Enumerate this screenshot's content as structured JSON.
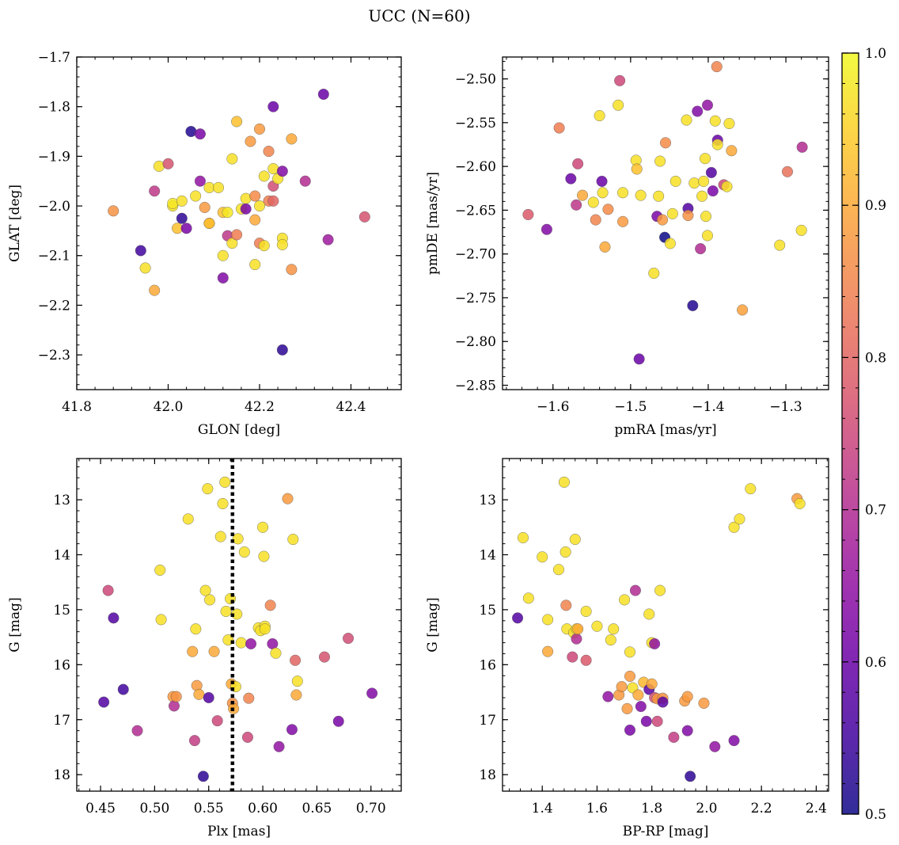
{
  "figure": {
    "title": "UCC (N=60)",
    "colorbar": {
      "cmap": "plasma",
      "min": 0.5,
      "max": 1.0,
      "ticks": [
        0.5,
        0.6,
        0.7,
        0.8,
        0.9,
        1.0
      ],
      "tick_labels": [
        "0.5",
        "0.6",
        "0.7",
        "0.8",
        "0.9",
        "1.0"
      ]
    }
  },
  "chart_data": [
    {
      "type": "scatter",
      "xlabel": "GLON [deg]",
      "ylabel": "GLAT [deg]",
      "xlim": [
        41.8,
        42.51
      ],
      "ylim": [
        -2.37,
        -1.7
      ],
      "y_inverted": false,
      "xticks": [
        41.8,
        42.0,
        42.2,
        42.4
      ],
      "xtick_labels": [
        "41.8",
        "42.0",
        "42.2",
        "42.4"
      ],
      "yticks": [
        -1.7,
        -1.8,
        -1.9,
        -2.0,
        -2.1,
        -2.2,
        -2.3
      ],
      "ytick_labels": [
        "−1.7",
        "−1.8",
        "−1.9",
        "−2.0",
        "−2.1",
        "−2.2",
        "−2.3"
      ],
      "x": [
        41.88,
        41.94,
        41.95,
        41.97,
        41.97,
        41.98,
        42.0,
        42.01,
        42.01,
        42.02,
        42.03,
        42.03,
        42.04,
        42.05,
        42.06,
        42.07,
        42.07,
        42.08,
        42.09,
        42.09,
        42.09,
        42.11,
        42.12,
        42.12,
        42.12,
        42.13,
        42.13,
        42.14,
        42.14,
        42.15,
        42.15,
        42.16,
        42.17,
        42.18,
        42.19,
        42.19,
        42.19,
        42.2,
        42.2,
        42.21,
        42.21,
        42.22,
        42.22,
        42.23,
        42.23,
        42.23,
        42.23,
        42.24,
        42.25,
        42.25,
        42.25,
        42.27,
        42.27,
        42.3,
        42.34,
        42.35,
        42.43,
        42.17,
        42.25,
        42.2
      ],
      "y": [
        -2.01,
        -2.09,
        -2.125,
        -1.97,
        -2.17,
        -1.92,
        -1.915,
        -2.0,
        -1.995,
        -2.045,
        -1.99,
        -2.025,
        -2.045,
        -1.85,
        -1.98,
        -1.855,
        -1.95,
        -2.003,
        -1.963,
        -2.035,
        -2.035,
        -1.963,
        -2.1,
        -2.145,
        -2.013,
        -2.06,
        -2.013,
        -2.075,
        -1.905,
        -1.83,
        -2.058,
        -2.006,
        -1.985,
        -1.87,
        -1.98,
        -2.028,
        -2.118,
        -1.845,
        -2.075,
        -1.94,
        -2.08,
        -1.99,
        -1.89,
        -1.8,
        -1.925,
        -1.99,
        -1.96,
        -1.945,
        -2.29,
        -2.065,
        -2.078,
        -1.865,
        -2.128,
        -1.95,
        -1.775,
        -2.068,
        -2.022,
        -2.006,
        -1.93,
        -2.0
      ],
      "c": [
        0.87,
        0.55,
        0.97,
        0.72,
        0.9,
        0.97,
        0.77,
        0.97,
        0.98,
        0.93,
        0.97,
        0.53,
        0.62,
        0.52,
        0.97,
        0.62,
        0.65,
        0.88,
        0.97,
        0.96,
        0.92,
        0.97,
        0.97,
        0.63,
        0.93,
        0.72,
        0.98,
        0.97,
        0.97,
        0.93,
        0.84,
        0.97,
        0.97,
        0.88,
        0.86,
        0.9,
        0.97,
        0.88,
        0.84,
        0.97,
        0.97,
        0.84,
        0.85,
        0.6,
        0.97,
        0.8,
        0.76,
        0.97,
        0.53,
        0.97,
        0.97,
        0.9,
        0.87,
        0.7,
        0.6,
        0.67,
        0.77,
        0.62,
        0.63,
        0.97
      ]
    },
    {
      "type": "scatter",
      "xlabel": "pmRA [mas/yr]",
      "ylabel": "pmDE [mas/yr]",
      "xlim": [
        -1.665,
        -1.245
      ],
      "ylim": [
        -2.855,
        -2.475
      ],
      "y_inverted": false,
      "xticks": [
        -1.6,
        -1.5,
        -1.4,
        -1.3
      ],
      "xtick_labels": [
        "−1.6",
        "−1.5",
        "−1.4",
        "−1.3"
      ],
      "yticks": [
        -2.5,
        -2.55,
        -2.6,
        -2.65,
        -2.7,
        -2.75,
        -2.8,
        -2.85
      ],
      "ytick_labels": [
        "−2.50",
        "−2.55",
        "−2.60",
        "−2.65",
        "−2.70",
        "−2.75",
        "−2.80",
        "−2.85"
      ],
      "x": [
        -1.632,
        -1.608,
        -1.592,
        -1.577,
        -1.57,
        -1.568,
        -1.562,
        -1.548,
        -1.545,
        -1.54,
        -1.537,
        -1.533,
        -1.529,
        -1.516,
        -1.514,
        -1.51,
        -1.51,
        -1.493,
        -1.492,
        -1.487,
        -1.489,
        -1.47,
        -1.466,
        -1.464,
        -1.462,
        -1.459,
        -1.456,
        -1.455,
        -1.449,
        -1.446,
        -1.442,
        -1.428,
        -1.426,
        -1.426,
        -1.42,
        -1.418,
        -1.414,
        -1.41,
        -1.408,
        -1.406,
        -1.404,
        -1.403,
        -1.401,
        -1.401,
        -1.396,
        -1.394,
        -1.391,
        -1.388,
        -1.389,
        -1.38,
        -1.376,
        -1.373,
        -1.37,
        -1.356,
        -1.308,
        -1.298,
        -1.28,
        -1.279,
        -1.536,
        -1.388
      ],
      "y": [
        -2.655,
        -2.672,
        -2.556,
        -2.614,
        -2.644,
        -2.597,
        -2.633,
        -2.641,
        -2.661,
        -2.542,
        -2.617,
        -2.692,
        -2.649,
        -2.53,
        -2.502,
        -2.63,
        -2.663,
        -2.593,
        -2.603,
        -2.633,
        -2.82,
        -2.722,
        -2.657,
        -2.634,
        -2.594,
        -2.661,
        -2.681,
        -2.573,
        -2.688,
        -2.654,
        -2.617,
        -2.547,
        -2.648,
        -2.656,
        -2.759,
        -2.619,
        -2.537,
        -2.694,
        -2.634,
        -2.617,
        -2.591,
        -2.657,
        -2.53,
        -2.679,
        -2.607,
        -2.628,
        -2.548,
        -2.57,
        -2.486,
        -2.621,
        -2.623,
        -2.551,
        -2.582,
        -2.764,
        -2.69,
        -2.606,
        -2.673,
        -2.578,
        -2.63,
        -2.575
      ],
      "c": [
        0.78,
        0.63,
        0.84,
        0.6,
        0.72,
        0.75,
        0.9,
        0.97,
        0.85,
        0.97,
        0.6,
        0.9,
        0.86,
        0.97,
        0.75,
        0.97,
        0.88,
        0.97,
        0.93,
        0.97,
        0.6,
        0.97,
        0.62,
        0.97,
        0.97,
        0.88,
        0.5,
        0.86,
        0.97,
        0.97,
        0.97,
        0.97,
        0.57,
        0.87,
        0.52,
        0.97,
        0.63,
        0.7,
        0.97,
        0.97,
        0.97,
        0.97,
        0.65,
        0.97,
        0.57,
        0.62,
        0.97,
        0.6,
        0.85,
        0.75,
        0.97,
        0.97,
        0.9,
        0.89,
        0.97,
        0.82,
        0.97,
        0.7,
        0.97,
        0.97
      ]
    },
    {
      "type": "scatter",
      "xlabel": "Plx [mas]",
      "ylabel": "G [mag]",
      "xlim": [
        0.428,
        0.728
      ],
      "ylim": [
        12.25,
        18.3
      ],
      "y_inverted": true,
      "vline": 0.572,
      "xticks": [
        0.45,
        0.5,
        0.55,
        0.6,
        0.65,
        0.7
      ],
      "xtick_labels": [
        "0.45",
        "0.50",
        "0.55",
        "0.60",
        "0.65",
        "0.70"
      ],
      "yticks": [
        13,
        14,
        15,
        16,
        17,
        18
      ],
      "ytick_labels": [
        "13",
        "14",
        "15",
        "16",
        "17",
        "18"
      ],
      "x": [
        0.453,
        0.457,
        0.462,
        0.471,
        0.484,
        0.505,
        0.506,
        0.517,
        0.518,
        0.52,
        0.531,
        0.535,
        0.537,
        0.538,
        0.539,
        0.541,
        0.545,
        0.547,
        0.549,
        0.55,
        0.551,
        0.555,
        0.558,
        0.561,
        0.563,
        0.565,
        0.566,
        0.568,
        0.57,
        0.571,
        0.572,
        0.573,
        0.575,
        0.576,
        0.577,
        0.58,
        0.583,
        0.586,
        0.587,
        0.589,
        0.596,
        0.598,
        0.6,
        0.601,
        0.602,
        0.602,
        0.607,
        0.609,
        0.612,
        0.615,
        0.623,
        0.627,
        0.628,
        0.63,
        0.631,
        0.632,
        0.657,
        0.67,
        0.679,
        0.701
      ],
      "y": [
        16.68,
        14.65,
        15.15,
        16.45,
        17.2,
        14.28,
        15.18,
        16.58,
        16.75,
        16.58,
        13.35,
        15.76,
        17.38,
        15.35,
        16.38,
        16.54,
        18.03,
        14.65,
        12.8,
        16.6,
        14.82,
        15.76,
        17.02,
        13.67,
        13.07,
        12.68,
        15.03,
        15.55,
        14.8,
        16.35,
        16.7,
        16.8,
        16.4,
        15.08,
        13.71,
        15.6,
        13.95,
        17.32,
        16.61,
        15.62,
        15.33,
        15.38,
        13.5,
        14.03,
        15.3,
        15.35,
        14.92,
        15.62,
        15.79,
        17.49,
        12.98,
        17.18,
        13.72,
        15.92,
        16.55,
        16.3,
        15.86,
        17.03,
        15.52,
        16.52
      ],
      "c": [
        0.57,
        0.75,
        0.57,
        0.55,
        0.7,
        0.97,
        0.97,
        0.88,
        0.7,
        0.87,
        0.97,
        0.9,
        0.73,
        0.97,
        0.88,
        0.9,
        0.53,
        0.97,
        0.97,
        0.57,
        0.97,
        0.9,
        0.75,
        0.97,
        0.97,
        0.97,
        0.97,
        0.97,
        0.97,
        0.9,
        0.87,
        0.9,
        0.97,
        0.97,
        0.97,
        0.97,
        0.97,
        0.75,
        0.85,
        0.65,
        0.97,
        0.97,
        0.97,
        0.97,
        0.97,
        0.97,
        0.85,
        0.65,
        0.97,
        0.65,
        0.88,
        0.63,
        0.97,
        0.8,
        0.9,
        0.97,
        0.77,
        0.62,
        0.76,
        0.63
      ]
    },
    {
      "type": "scatter",
      "xlabel": "BP-RP [mag]",
      "ylabel": "G [mag]",
      "xlim": [
        1.255,
        2.445
      ],
      "ylim": [
        12.25,
        18.3
      ],
      "y_inverted": true,
      "xticks": [
        1.4,
        1.6,
        1.8,
        2.0,
        2.2,
        2.4
      ],
      "xtick_labels": [
        "1.4",
        "1.6",
        "1.8",
        "2.0",
        "2.2",
        "2.4"
      ],
      "yticks": [
        13,
        14,
        15,
        16,
        17,
        18
      ],
      "ytick_labels": [
        "13",
        "14",
        "15",
        "16",
        "17",
        "18"
      ],
      "x": [
        1.31,
        1.33,
        1.35,
        1.4,
        1.42,
        1.42,
        1.46,
        1.48,
        1.485,
        1.487,
        1.49,
        1.51,
        1.515,
        1.52,
        1.525,
        1.525,
        1.53,
        1.56,
        1.56,
        1.6,
        1.64,
        1.65,
        1.66,
        1.68,
        1.69,
        1.7,
        1.71,
        1.72,
        1.72,
        1.72,
        1.73,
        1.74,
        1.75,
        1.76,
        1.77,
        1.78,
        1.79,
        1.79,
        1.8,
        1.8,
        1.81,
        1.81,
        1.82,
        1.82,
        1.83,
        1.84,
        1.84,
        1.88,
        1.92,
        1.93,
        1.93,
        1.94,
        1.99,
        2.03,
        2.1,
        2.1,
        2.12,
        2.16,
        2.33,
        2.34
      ],
      "y": [
        15.15,
        13.69,
        14.79,
        14.04,
        15.18,
        15.76,
        14.27,
        12.68,
        13.95,
        14.92,
        15.35,
        15.86,
        15.42,
        13.72,
        15.53,
        15.35,
        15.35,
        15.03,
        15.92,
        15.3,
        16.58,
        15.55,
        15.35,
        16.55,
        16.4,
        14.82,
        16.8,
        15.77,
        16.21,
        17.19,
        16.42,
        14.65,
        16.55,
        16.76,
        16.32,
        17.03,
        16.45,
        15.08,
        15.6,
        16.35,
        16.6,
        15.62,
        17.03,
        16.62,
        14.65,
        16.61,
        16.68,
        17.32,
        16.66,
        16.58,
        17.2,
        18.03,
        16.7,
        17.49,
        17.38,
        13.5,
        13.35,
        12.8,
        12.98,
        13.07
      ],
      "c": [
        0.57,
        0.97,
        0.97,
        0.97,
        0.97,
        0.9,
        0.97,
        0.97,
        0.97,
        0.85,
        0.97,
        0.75,
        0.97,
        0.97,
        0.7,
        0.97,
        0.9,
        0.97,
        0.78,
        0.97,
        0.65,
        0.97,
        0.97,
        0.88,
        0.88,
        0.97,
        0.88,
        0.97,
        0.88,
        0.62,
        0.97,
        0.7,
        0.9,
        0.63,
        0.92,
        0.62,
        0.58,
        0.97,
        0.97,
        0.9,
        0.76,
        0.65,
        0.75,
        0.88,
        0.97,
        0.87,
        0.58,
        0.73,
        0.88,
        0.88,
        0.63,
        0.53,
        0.88,
        0.65,
        0.63,
        0.97,
        0.97,
        0.97,
        0.88,
        0.97
      ]
    }
  ]
}
